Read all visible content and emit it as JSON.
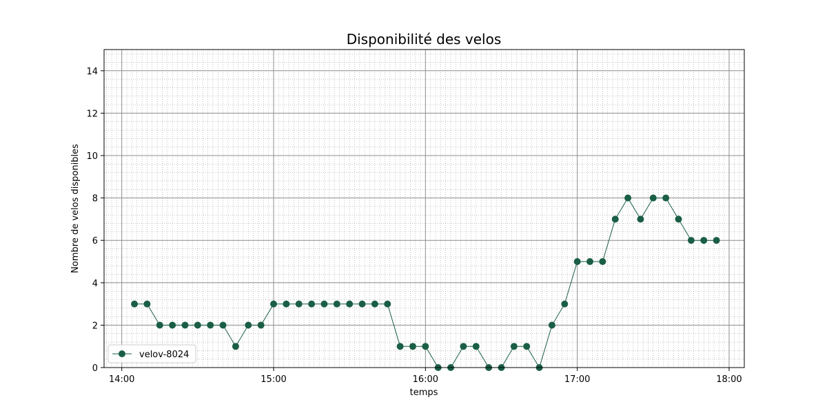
{
  "chart_data": {
    "type": "line",
    "title": "Disponibilité des velos",
    "xlabel": "temps",
    "ylabel": "Nombre de velos disponibles",
    "xlim": [
      "13:53",
      "18:06"
    ],
    "ylim": [
      0,
      15
    ],
    "x_ticks": [
      "14:00",
      "15:00",
      "16:00",
      "17:00",
      "18:00"
    ],
    "y_ticks": [
      0,
      2,
      4,
      6,
      8,
      10,
      12,
      14
    ],
    "grid": true,
    "minor_grid": true,
    "legend": {
      "position": "lower-left"
    },
    "series": [
      {
        "name": "velov-8024",
        "color": "#1a5e45",
        "marker": "circle",
        "x": [
          "14:05",
          "14:10",
          "14:15",
          "14:20",
          "14:25",
          "14:30",
          "14:35",
          "14:40",
          "14:45",
          "14:50",
          "14:55",
          "15:00",
          "15:05",
          "15:10",
          "15:15",
          "15:20",
          "15:25",
          "15:30",
          "15:35",
          "15:40",
          "15:45",
          "15:50",
          "15:55",
          "16:00",
          "16:05",
          "16:10",
          "16:15",
          "16:20",
          "16:25",
          "16:30",
          "16:35",
          "16:40",
          "16:45",
          "16:50",
          "16:55",
          "17:00",
          "17:05",
          "17:10",
          "17:15",
          "17:20",
          "17:25",
          "17:30",
          "17:35",
          "17:40",
          "17:45",
          "17:50",
          "17:55"
        ],
        "values": [
          3,
          3,
          2,
          2,
          2,
          2,
          2,
          2,
          1,
          2,
          2,
          3,
          3,
          3,
          3,
          3,
          3,
          3,
          3,
          3,
          3,
          1,
          1,
          1,
          0,
          0,
          1,
          1,
          0,
          0,
          1,
          1,
          0,
          2,
          3,
          5,
          5,
          5,
          7,
          8,
          7,
          8,
          8,
          7,
          6,
          6,
          6
        ]
      }
    ]
  }
}
